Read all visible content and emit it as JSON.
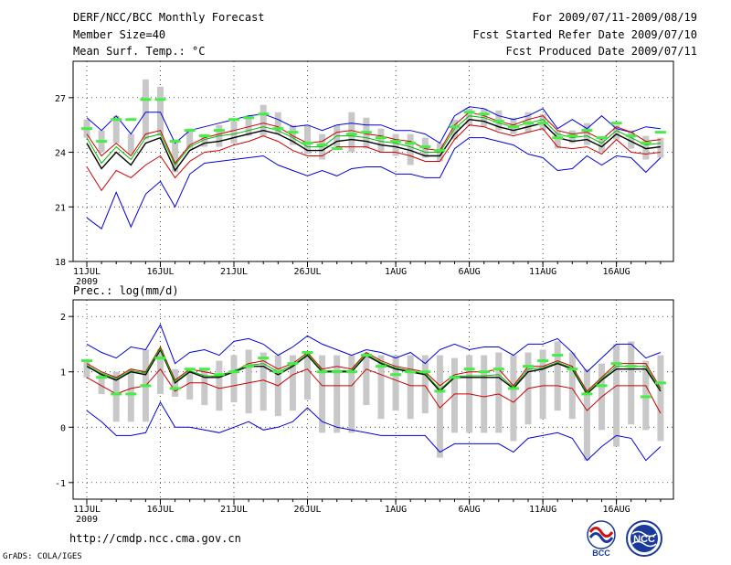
{
  "header": {
    "title": "DERF/NCC/BCC Monthly Forecast",
    "member_size": "Member Size=40",
    "variable": "Mean Surf. Temp.: °C",
    "period": "For 2009/07/11-2009/08/19",
    "fcst_started": "Fcst Started Refer Date 2009/07/10",
    "fcst_produced": "Fcst Produced Date 2009/07/11"
  },
  "footer": {
    "url": "http://cmdp.ncc.cma.gov.cn",
    "grads": "GrADS: COLA/IGES",
    "logo_bcc": "BCC",
    "logo_ncc": "NCC"
  },
  "colors": {
    "max_min": "#0000dd",
    "spread": "#cc0000",
    "mean": "#000000",
    "median": "#00bb00",
    "member_box": "#c8c8c8",
    "member_mark": "#44ee44",
    "grid": "#000000"
  },
  "chart_data": [
    {
      "type": "line",
      "title": "Mean Surf. Temp.: °C",
      "ylabel": "°C",
      "ylim": [
        18,
        29
      ],
      "yticks": [
        18,
        21,
        24,
        27
      ],
      "grid": "dotted",
      "x_tick_labels": [
        "11JUL",
        "16JUL",
        "21JUL",
        "26JUL",
        "1AUG",
        "6AUG",
        "11AUG",
        "16AUG"
      ],
      "x_tick_days": [
        0,
        5,
        10,
        15,
        21,
        26,
        31,
        36
      ],
      "year_label": "2009",
      "series": [
        {
          "name": "max",
          "color": "#0000dd",
          "values": [
            25.9,
            25.2,
            26.0,
            25.0,
            26.2,
            26.2,
            24.5,
            25.2,
            25.4,
            25.6,
            25.8,
            26.0,
            26.1,
            25.8,
            25.4,
            25.5,
            25.2,
            25.5,
            25.6,
            25.5,
            25.5,
            25.2,
            25.2,
            25.0,
            24.5,
            26.0,
            26.5,
            26.4,
            26.0,
            25.8,
            26.0,
            26.4,
            25.3,
            25.8,
            25.3,
            26.0,
            25.3,
            25.1,
            25.4,
            25.3
          ]
        },
        {
          "name": "upper",
          "color": "#cc0000",
          "values": [
            25.0,
            23.8,
            24.5,
            23.8,
            25.0,
            25.2,
            23.4,
            24.4,
            24.8,
            25.0,
            25.2,
            25.4,
            25.6,
            25.4,
            24.9,
            24.5,
            24.6,
            25.1,
            25.2,
            25.0,
            24.9,
            24.7,
            24.6,
            24.2,
            24.1,
            25.5,
            26.2,
            26.0,
            25.7,
            25.5,
            25.8,
            26.0,
            25.2,
            25.0,
            25.1,
            24.7,
            25.4,
            25.1,
            24.6,
            24.7
          ]
        },
        {
          "name": "mean",
          "color": "#000000",
          "values": [
            24.5,
            23.1,
            24.0,
            23.3,
            24.5,
            24.8,
            23.0,
            24.1,
            24.5,
            24.6,
            24.8,
            25.0,
            25.2,
            25.0,
            24.6,
            24.1,
            24.1,
            24.6,
            24.7,
            24.6,
            24.4,
            24.3,
            24.1,
            23.8,
            23.8,
            25.0,
            25.8,
            25.7,
            25.4,
            25.2,
            25.4,
            25.6,
            24.8,
            24.6,
            24.7,
            24.3,
            25.0,
            24.6,
            24.2,
            24.3
          ]
        },
        {
          "name": "median",
          "color": "#00bb00",
          "values": [
            24.8,
            23.4,
            24.3,
            23.6,
            24.8,
            25.0,
            23.3,
            24.3,
            24.7,
            24.9,
            25.0,
            25.2,
            25.4,
            25.2,
            24.8,
            24.3,
            24.3,
            24.9,
            24.9,
            24.8,
            24.6,
            24.5,
            24.3,
            24.0,
            24.0,
            25.3,
            26.0,
            25.9,
            25.6,
            25.4,
            25.6,
            25.8,
            25.0,
            24.8,
            24.9,
            24.5,
            25.2,
            24.8,
            24.4,
            24.5
          ]
        },
        {
          "name": "lower",
          "color": "#cc0000",
          "values": [
            23.2,
            21.9,
            23.0,
            22.6,
            23.3,
            23.8,
            22.6,
            23.5,
            24.0,
            24.1,
            24.4,
            24.6,
            24.9,
            24.6,
            24.1,
            23.8,
            23.8,
            24.3,
            24.3,
            24.3,
            24.0,
            24.0,
            23.8,
            23.5,
            23.5,
            24.7,
            25.5,
            25.4,
            25.1,
            24.9,
            25.1,
            25.3,
            24.3,
            24.2,
            24.3,
            23.9,
            24.7,
            24.0,
            23.9,
            24.0
          ]
        },
        {
          "name": "min",
          "color": "#0000dd",
          "values": [
            20.4,
            19.8,
            21.8,
            19.9,
            21.7,
            22.4,
            21.0,
            22.8,
            23.4,
            23.5,
            23.6,
            23.7,
            23.8,
            23.3,
            23.0,
            22.7,
            23.0,
            22.7,
            23.1,
            23.2,
            23.2,
            22.8,
            22.8,
            22.6,
            22.6,
            24.2,
            24.8,
            24.8,
            24.6,
            24.4,
            23.9,
            23.7,
            23.0,
            23.1,
            23.8,
            23.3,
            23.8,
            23.7,
            22.9,
            23.7
          ]
        }
      ],
      "member_boxes": [
        [
          25.8,
          24.8
        ],
        [
          25.2,
          24.0
        ],
        [
          26.0,
          24.5
        ],
        [
          25.0,
          23.9
        ],
        [
          28.0,
          24.7
        ],
        [
          27.6,
          24.9
        ],
        [
          24.7,
          22.9
        ],
        [
          25.3,
          24.2
        ],
        [
          25.0,
          24.3
        ],
        [
          25.5,
          24.3
        ],
        [
          25.7,
          24.5
        ],
        [
          26.0,
          24.9
        ],
        [
          26.6,
          24.9
        ],
        [
          26.2,
          25.0
        ],
        [
          25.5,
          24.4
        ],
        [
          25.5,
          23.9
        ],
        [
          25.0,
          23.6
        ],
        [
          25.5,
          24.3
        ],
        [
          26.2,
          24.0
        ],
        [
          25.9,
          24.2
        ],
        [
          25.3,
          24.0
        ],
        [
          25.0,
          23.8
        ],
        [
          25.0,
          23.3
        ],
        [
          24.8,
          23.7
        ],
        [
          24.5,
          23.5
        ],
        [
          25.8,
          24.7
        ],
        [
          26.4,
          25.5
        ],
        [
          26.4,
          25.4
        ],
        [
          26.3,
          25.2
        ],
        [
          25.9,
          25.0
        ],
        [
          26.2,
          25.1
        ],
        [
          26.1,
          25.2
        ],
        [
          25.2,
          24.2
        ],
        [
          25.2,
          24.5
        ],
        [
          25.6,
          24.4
        ],
        [
          24.8,
          24.0
        ],
        [
          25.5,
          24.7
        ],
        [
          25.2,
          24.2
        ],
        [
          24.9,
          23.6
        ],
        [
          24.8,
          23.7
        ]
      ],
      "member_marks": [
        25.3,
        24.6,
        25.8,
        25.8,
        26.9,
        26.9,
        24.6,
        25.2,
        24.9,
        25.2,
        25.8,
        25.9,
        26.1,
        25.3,
        25.1,
        24.5,
        24.4,
        24.2,
        25.0,
        25.1,
        24.8,
        24.6,
        24.5,
        24.3,
        24.1,
        25.4,
        26.2,
        26.1,
        25.7,
        25.4,
        25.6,
        25.6,
        24.8,
        24.9,
        25.2,
        24.8,
        25.6,
        24.9,
        24.5,
        25.1
      ]
    },
    {
      "type": "line",
      "title": "Prec.: log(mm/d)",
      "ylabel": "log(mm/d)",
      "ylim": [
        -1.3,
        2.3
      ],
      "yticks": [
        -1,
        0,
        1,
        2
      ],
      "grid": "dotted",
      "x_tick_labels": [
        "11JUL",
        "16JUL",
        "21JUL",
        "26JUL",
        "1AUG",
        "6AUG",
        "11AUG",
        "16AUG"
      ],
      "x_tick_days": [
        0,
        5,
        10,
        15,
        21,
        26,
        31,
        36
      ],
      "year_label": "2009",
      "series": [
        {
          "name": "max",
          "color": "#0000dd",
          "values": [
            1.5,
            1.35,
            1.25,
            1.45,
            1.4,
            1.85,
            1.15,
            1.35,
            1.4,
            1.3,
            1.55,
            1.6,
            1.5,
            1.3,
            1.45,
            1.65,
            1.5,
            1.4,
            1.3,
            1.4,
            1.35,
            1.25,
            1.35,
            1.15,
            1.4,
            1.5,
            1.4,
            1.45,
            1.45,
            1.3,
            1.5,
            1.5,
            1.6,
            1.35,
            1.0,
            1.25,
            1.5,
            1.5,
            1.25,
            1.35
          ]
        },
        {
          "name": "upper",
          "color": "#cc0000",
          "values": [
            1.15,
            1.0,
            0.9,
            1.05,
            1.0,
            1.45,
            0.85,
            1.05,
            1.0,
            0.95,
            1.0,
            1.15,
            1.2,
            1.05,
            1.15,
            1.35,
            1.05,
            1.1,
            1.05,
            1.35,
            1.2,
            1.1,
            1.05,
            1.0,
            0.75,
            0.95,
            1.0,
            1.0,
            1.05,
            0.75,
            1.1,
            1.1,
            1.2,
            1.1,
            0.65,
            0.9,
            1.15,
            1.15,
            1.15,
            0.7
          ]
        },
        {
          "name": "mean",
          "color": "#000000",
          "values": [
            1.1,
            0.95,
            0.85,
            1.0,
            0.95,
            1.4,
            0.8,
            1.0,
            0.9,
            0.9,
            1.0,
            1.1,
            1.1,
            0.95,
            1.1,
            1.3,
            1.0,
            1.0,
            1.0,
            1.3,
            1.15,
            1.05,
            1.0,
            0.95,
            0.65,
            0.9,
            0.9,
            0.9,
            0.9,
            0.7,
            1.0,
            1.05,
            1.15,
            1.05,
            0.6,
            0.85,
            1.05,
            1.05,
            1.05,
            0.65
          ]
        },
        {
          "name": "median",
          "color": "#00bb00",
          "values": [
            1.12,
            0.97,
            0.88,
            1.02,
            0.98,
            1.42,
            0.82,
            1.02,
            0.93,
            0.92,
            1.02,
            1.12,
            1.15,
            1.0,
            1.12,
            1.32,
            1.02,
            1.02,
            1.02,
            1.32,
            1.17,
            1.07,
            1.02,
            0.97,
            0.68,
            0.92,
            0.93,
            0.93,
            0.95,
            0.72,
            1.05,
            1.07,
            1.17,
            1.07,
            0.62,
            0.87,
            1.1,
            1.1,
            1.1,
            0.67
          ]
        },
        {
          "name": "lower",
          "color": "#cc0000",
          "values": [
            0.9,
            0.75,
            0.6,
            0.7,
            0.75,
            1.05,
            0.65,
            0.8,
            0.8,
            0.7,
            0.75,
            0.8,
            0.85,
            0.75,
            0.95,
            1.05,
            0.75,
            0.75,
            0.75,
            1.05,
            0.95,
            0.85,
            0.75,
            0.75,
            0.35,
            0.6,
            0.6,
            0.55,
            0.6,
            0.45,
            0.7,
            0.75,
            0.75,
            0.7,
            0.3,
            0.55,
            0.75,
            0.75,
            0.75,
            0.25
          ]
        },
        {
          "name": "min",
          "color": "#0000dd",
          "values": [
            0.3,
            0.1,
            -0.15,
            -0.15,
            -0.1,
            0.45,
            0.0,
            0.0,
            -0.05,
            -0.1,
            0.0,
            0.1,
            -0.05,
            0.0,
            0.1,
            0.35,
            0.1,
            0.0,
            -0.05,
            -0.1,
            -0.15,
            -0.15,
            -0.15,
            -0.15,
            -0.45,
            -0.3,
            -0.3,
            -0.3,
            -0.3,
            -0.45,
            -0.2,
            -0.15,
            -0.1,
            -0.2,
            -0.6,
            -0.35,
            -0.15,
            -0.2,
            -0.6,
            -0.35
          ]
        }
      ],
      "member_boxes": [
        [
          1.2,
          0.9
        ],
        [
          1.0,
          0.6
        ],
        [
          1.0,
          0.1
        ],
        [
          1.05,
          0.1
        ],
        [
          1.4,
          0.1
        ],
        [
          1.4,
          0.6
        ],
        [
          1.05,
          0.55
        ],
        [
          1.0,
          0.5
        ],
        [
          1.05,
          0.4
        ],
        [
          1.2,
          0.3
        ],
        [
          1.3,
          0.45
        ],
        [
          1.4,
          0.25
        ],
        [
          1.35,
          0.3
        ],
        [
          1.3,
          0.2
        ],
        [
          1.3,
          0.3
        ],
        [
          1.35,
          0.5
        ],
        [
          1.3,
          -0.1
        ],
        [
          1.3,
          -0.1
        ],
        [
          1.3,
          -0.1
        ],
        [
          1.35,
          0.4
        ],
        [
          1.3,
          0.15
        ],
        [
          1.3,
          0.3
        ],
        [
          1.3,
          0.15
        ],
        [
          1.3,
          0.25
        ],
        [
          1.3,
          -0.55
        ],
        [
          1.25,
          -0.1
        ],
        [
          1.3,
          -0.1
        ],
        [
          1.3,
          -0.1
        ],
        [
          1.35,
          -0.1
        ],
        [
          1.3,
          -0.25
        ],
        [
          1.35,
          0.05
        ],
        [
          1.4,
          0.15
        ],
        [
          1.55,
          0.3
        ],
        [
          1.35,
          0.15
        ],
        [
          1.05,
          -0.6
        ],
        [
          1.15,
          -0.05
        ],
        [
          1.5,
          -0.35
        ],
        [
          1.55,
          0.05
        ],
        [
          1.2,
          -0.05
        ],
        [
          1.3,
          -0.25
        ]
      ],
      "member_marks": [
        1.2,
        0.9,
        0.6,
        0.6,
        0.75,
        1.25,
        0.7,
        1.05,
        1.05,
        0.95,
        1.0,
        1.1,
        1.25,
        1.0,
        1.15,
        1.35,
        1.0,
        1.0,
        1.0,
        1.3,
        1.1,
        0.95,
        1.0,
        1.0,
        0.65,
        0.9,
        1.05,
        1.0,
        1.05,
        0.7,
        1.1,
        1.2,
        1.3,
        1.05,
        0.6,
        0.75,
        1.15,
        1.1,
        0.55,
        0.8
      ]
    }
  ]
}
